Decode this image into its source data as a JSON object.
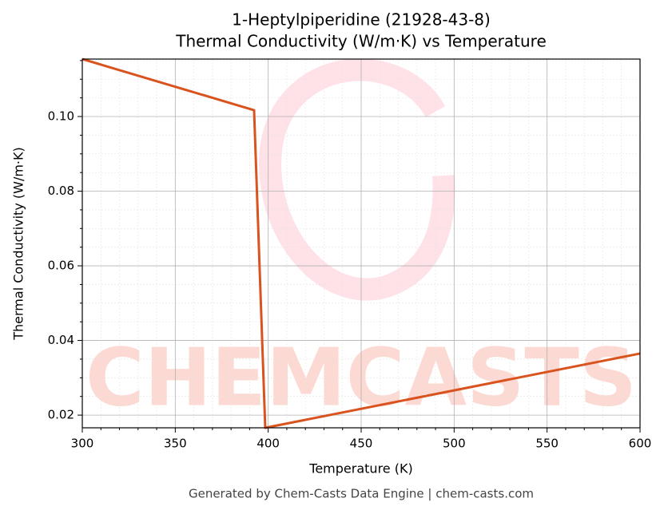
{
  "chart_data": {
    "type": "line",
    "title": "1-Heptylpiperidine (21928-43-8)",
    "subtitle": "Thermal Conductivity (W/m·K) vs Temperature",
    "x_label": "Temperature (K)",
    "y_label": "Thermal Conductivity (W/m·K)",
    "footer": "Generated by Chem-Casts Data Engine | chem-casts.com",
    "watermark": "CHEMCASTS",
    "x": [
      300,
      392.4,
      398.4,
      600
    ],
    "series": [
      {
        "name": "Thermal Conductivity",
        "color": "#d9531e",
        "values": [
          0.1154,
          0.1017,
          0.0166,
          0.0365
        ]
      }
    ],
    "xlim": [
      300,
      600
    ],
    "ylim": [
      0.0166,
      0.1154
    ],
    "xticks": [
      300,
      350,
      400,
      450,
      500,
      550,
      600
    ],
    "yticks": [
      {
        "value": 0.02,
        "label": "0.02"
      },
      {
        "value": 0.04,
        "label": "0.04"
      },
      {
        "value": 0.06,
        "label": "0.06"
      },
      {
        "value": 0.08,
        "label": "0.08"
      },
      {
        "value": 0.1,
        "label": "0.10"
      }
    ],
    "xminorticks": [
      310,
      320,
      330,
      340,
      360,
      370,
      380,
      390,
      410,
      420,
      430,
      440,
      460,
      470,
      480,
      490,
      510,
      520,
      530,
      540,
      560,
      570,
      580,
      590
    ],
    "yminorticks": [
      0.025,
      0.03,
      0.035,
      0.045,
      0.05,
      0.055,
      0.065,
      0.07,
      0.075,
      0.085,
      0.09,
      0.095,
      0.105,
      0.11,
      0.115
    ],
    "grid": true
  }
}
